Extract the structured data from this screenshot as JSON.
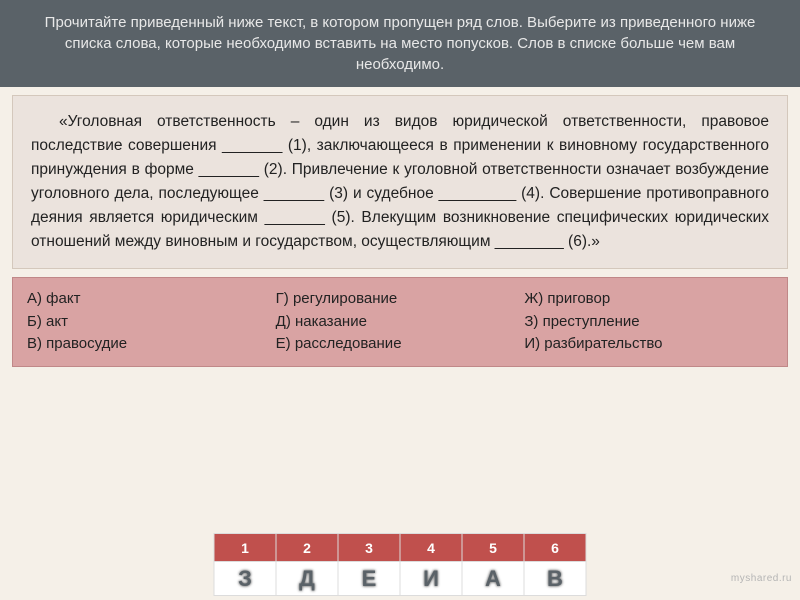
{
  "header": {
    "text": "Прочитайте приведенный ниже текст, в котором пропущен ряд слов. Выберите из приведенного ниже списка слова, которые необходимо вставить на место попусков. Слов в списке больше чем вам необходимо."
  },
  "passage": {
    "text": "«Уголовная ответственность – один из видов юридической ответственности, правовое последствие совершения _______ (1), заключающееся в применении к виновному государственного принуждения в форме _______ (2). Привлечение к уголовной ответственности означает возбуждение уголовного дела, последующее _______ (3) и судебное _________ (4). Совершение противоправного деяния является юридическим _______ (5). Влекущим возникновение специфических юридических отношений между виновным и государством, осуществляющим ________ (6).»"
  },
  "options": {
    "col1": [
      "А) факт",
      "Б) акт",
      "В) правосудие"
    ],
    "col2": [
      "Г) регулирование",
      "Д) наказание",
      "Е) расследование"
    ],
    "col3": [
      "Ж) приговор",
      "З) преступление",
      "И) разбирательство"
    ]
  },
  "answers": {
    "numbers": [
      "1",
      "2",
      "3",
      "4",
      "5",
      "6"
    ],
    "letters": [
      "З",
      "Д",
      "Е",
      "И",
      "А",
      "В"
    ]
  },
  "watermark": "myshared.ru",
  "colors": {
    "header_bg": "#5a6268",
    "passage_bg": "#ebe3dd",
    "options_bg": "#d9a3a3",
    "num_row_bg": "#c0504d"
  }
}
